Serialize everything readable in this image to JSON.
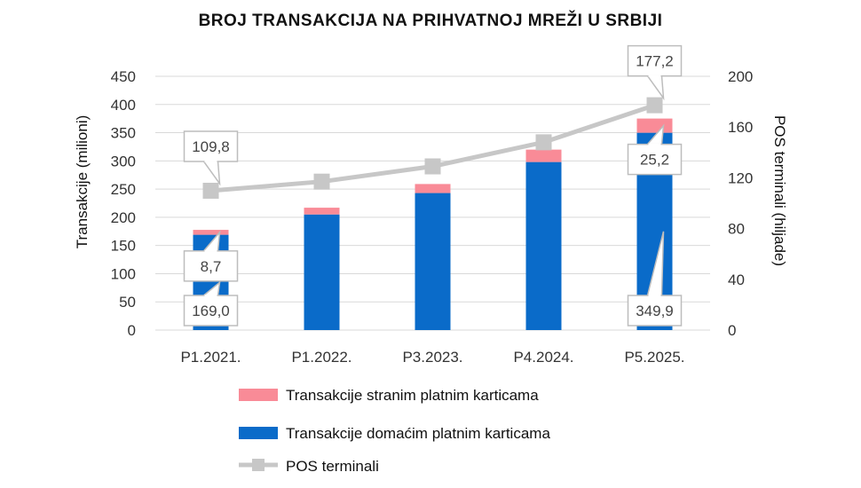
{
  "chart_data": {
    "type": "bar",
    "title": "BROJ TRANSAKCIJA NA PRIHVATNOJ MREŽI U SRBIJI",
    "categories": [
      "P1.2021.",
      "P1.2022.",
      "P3.2023.",
      "P4.2024.",
      "P5.2025."
    ],
    "ylabel": "Transakcije (milioni)",
    "ylim": [
      0,
      450
    ],
    "yticks": [
      "0",
      "50",
      "100",
      "150",
      "200",
      "250",
      "300",
      "350",
      "400",
      "450"
    ],
    "y2label": "POS terminali (hiljade)",
    "y2lim": [
      0,
      200
    ],
    "y2ticks": [
      "0",
      "40",
      "80",
      "120",
      "160",
      "200"
    ],
    "stacked": true,
    "grid": true,
    "legend_position": "bottom",
    "series": [
      {
        "name": "Transakcije domaćim platnim karticama",
        "type": "bar",
        "axis": "left",
        "color": "#0a6bc9",
        "values": [
          169.0,
          205,
          243,
          298,
          349.9
        ]
      },
      {
        "name": "Transakcije stranim platnim karticama",
        "type": "bar",
        "axis": "left",
        "color": "#f98b97",
        "values": [
          8.7,
          12,
          16,
          22,
          25.2
        ]
      },
      {
        "name": "POS terminali",
        "type": "line",
        "axis": "right",
        "color": "#c7c7c7",
        "values": [
          109.8,
          117,
          129,
          148,
          177.2
        ]
      }
    ],
    "annotations": [
      {
        "series": 2,
        "index": 0,
        "text": "109,8"
      },
      {
        "series": 2,
        "index": 4,
        "text": "177,2"
      },
      {
        "series": 1,
        "index": 0,
        "text": "8,7"
      },
      {
        "series": 1,
        "index": 4,
        "text": "25,2"
      },
      {
        "series": 0,
        "index": 0,
        "text": "169,0"
      },
      {
        "series": 0,
        "index": 4,
        "text": "349,9"
      }
    ]
  }
}
